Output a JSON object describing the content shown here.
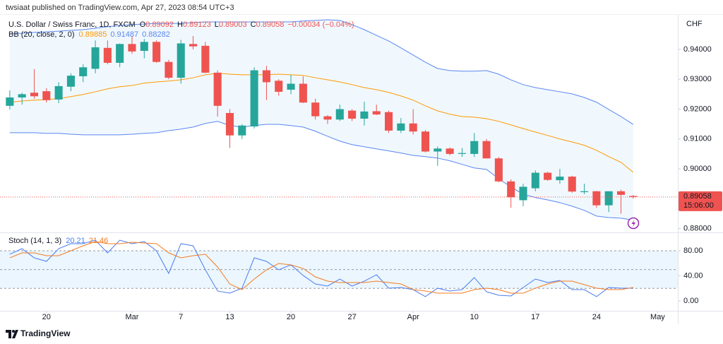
{
  "header": {
    "published": "twsiaat published on TradingView.com, Apr 27, 2023 08:54 UTC+3"
  },
  "footer": {
    "brand": "TradingView"
  },
  "chart_data": [
    {
      "type": "candlestick",
      "name": "U.S. Dollar / Swiss Franc, 1D, FXCM",
      "ohlc_labels": [
        "O",
        "H",
        "L",
        "C"
      ],
      "change_label": "−0.00034 (−0.04%)",
      "axis_label": "CHF",
      "last_price_timer": "15:06:00",
      "up_color": "#26a69a",
      "down_color": "#ef5350",
      "open": [
        0.9211,
        0.9239,
        0.9255,
        0.926,
        0.9232,
        0.9275,
        0.931,
        0.9335,
        0.9405,
        0.9355,
        0.9418,
        0.9395,
        0.9425,
        0.9358,
        0.9305,
        0.9418,
        0.9412,
        0.9322,
        0.9187,
        0.9112,
        0.9142,
        0.933,
        0.9295,
        0.9265,
        0.9285,
        0.9222,
        0.9176,
        0.9165,
        0.9195,
        0.9168,
        0.9193,
        0.919,
        0.9128,
        0.9152,
        0.9125,
        0.9058,
        0.9068,
        0.905,
        0.905,
        0.9093,
        0.9035,
        0.8958,
        0.8895,
        0.8935,
        0.8987,
        0.8962,
        0.8974,
        0.8922,
        0.8925,
        0.8878,
        0.8925,
        0.89092
      ],
      "high": [
        0.9263,
        0.9255,
        0.9334,
        0.927,
        0.929,
        0.932,
        0.935,
        0.943,
        0.943,
        0.942,
        0.9445,
        0.9435,
        0.943,
        0.9365,
        0.9432,
        0.9445,
        0.9425,
        0.933,
        0.92,
        0.915,
        0.934,
        0.9345,
        0.93,
        0.9315,
        0.931,
        0.9235,
        0.918,
        0.9215,
        0.92,
        0.9225,
        0.9215,
        0.9195,
        0.917,
        0.92,
        0.913,
        0.9075,
        0.9072,
        0.907,
        0.912,
        0.91,
        0.904,
        0.8965,
        0.895,
        0.8995,
        0.899,
        0.9,
        0.8977,
        0.895,
        0.8926,
        0.8925,
        0.893,
        0.89123
      ],
      "low": [
        0.9199,
        0.9215,
        0.9235,
        0.9222,
        0.922,
        0.926,
        0.929,
        0.932,
        0.935,
        0.934,
        0.9385,
        0.937,
        0.9355,
        0.93,
        0.9285,
        0.94,
        0.932,
        0.9175,
        0.907,
        0.91,
        0.9135,
        0.923,
        0.9245,
        0.925,
        0.922,
        0.9165,
        0.915,
        0.916,
        0.916,
        0.9145,
        0.918,
        0.912,
        0.912,
        0.9115,
        0.9055,
        0.901,
        0.9045,
        0.904,
        0.904,
        0.9035,
        0.8955,
        0.887,
        0.8875,
        0.8925,
        0.896,
        0.895,
        0.892,
        0.8915,
        0.887,
        0.8855,
        0.885,
        0.89003
      ],
      "close": [
        0.9239,
        0.925,
        0.9243,
        0.923,
        0.9277,
        0.9312,
        0.934,
        0.9407,
        0.9355,
        0.9418,
        0.9393,
        0.9425,
        0.9358,
        0.9305,
        0.942,
        0.941,
        0.9322,
        0.9211,
        0.9112,
        0.9145,
        0.933,
        0.929,
        0.9258,
        0.9285,
        0.9222,
        0.9176,
        0.9165,
        0.92,
        0.9168,
        0.9192,
        0.9182,
        0.9128,
        0.9152,
        0.9125,
        0.9058,
        0.9068,
        0.905,
        0.9053,
        0.9093,
        0.9035,
        0.8958,
        0.8905,
        0.894,
        0.8987,
        0.8963,
        0.8974,
        0.8924,
        0.8925,
        0.8878,
        0.8925,
        0.8913,
        0.89058
      ],
      "indicator": {
        "name": "BB (20, close, 2, 0)",
        "basis_color": "#ff9800",
        "band_color": "#5b86f0",
        "fill_color": "#e3f2fd",
        "basis": [
          0.9223,
          0.9227,
          0.923,
          0.9232,
          0.9235,
          0.9242,
          0.9249,
          0.9258,
          0.9268,
          0.9275,
          0.9279,
          0.9287,
          0.9291,
          0.9294,
          0.9298,
          0.9305,
          0.9315,
          0.932,
          0.9317,
          0.9315,
          0.9315,
          0.9315,
          0.9317,
          0.9315,
          0.9313,
          0.9305,
          0.9298,
          0.9291,
          0.9282,
          0.9272,
          0.9265,
          0.9256,
          0.9244,
          0.923,
          0.9211,
          0.9194,
          0.9183,
          0.9175,
          0.9173,
          0.9168,
          0.9159,
          0.9147,
          0.9135,
          0.9123,
          0.9112,
          0.91,
          0.909,
          0.9079,
          0.9062,
          0.9041,
          0.9022,
          0.89885
        ],
        "upper": [
          0.9452,
          0.9454,
          0.9457,
          0.9459,
          0.9461,
          0.9464,
          0.9466,
          0.9471,
          0.9476,
          0.948,
          0.9483,
          0.9485,
          0.9487,
          0.9487,
          0.9487,
          0.949,
          0.9492,
          0.9492,
          0.9492,
          0.9492,
          0.9492,
          0.9492,
          0.9492,
          0.9492,
          0.9495,
          0.9497,
          0.9499,
          0.9497,
          0.9483,
          0.9466,
          0.9447,
          0.9428,
          0.9405,
          0.9381,
          0.9357,
          0.9336,
          0.9329,
          0.9327,
          0.9327,
          0.9329,
          0.9317,
          0.9298,
          0.9282,
          0.9272,
          0.9265,
          0.9258,
          0.9251,
          0.9239,
          0.9223,
          0.9199,
          0.9175,
          0.91487
        ],
        "lower": [
          0.9121,
          0.9121,
          0.9121,
          0.9119,
          0.9119,
          0.9116,
          0.9114,
          0.9114,
          0.9114,
          0.9114,
          0.9116,
          0.9119,
          0.9121,
          0.9128,
          0.9133,
          0.914,
          0.9152,
          0.9159,
          0.9145,
          0.914,
          0.9145,
          0.9149,
          0.9149,
          0.9145,
          0.914,
          0.9126,
          0.9109,
          0.9093,
          0.9081,
          0.9074,
          0.9067,
          0.906,
          0.9053,
          0.9045,
          0.9041,
          0.9036,
          0.9027,
          0.9015,
          0.9003,
          0.8998,
          0.8967,
          0.8939,
          0.8915,
          0.8904,
          0.8896,
          0.8887,
          0.8875,
          0.8861,
          0.8842,
          0.8837,
          0.8835,
          0.88282
        ]
      },
      "xlim": [
        -0.8,
        54.65
      ],
      "ylim": [
        0.8792,
        0.9518
      ],
      "yticks": [
        {
          "value": 0.88,
          "label": "0.88000"
        },
        {
          "value": 0.89,
          "label": "0.89000"
        },
        {
          "value": 0.9,
          "label": "0.90000"
        },
        {
          "value": 0.91,
          "label": "0.91000"
        },
        {
          "value": 0.92,
          "label": "0.92000"
        },
        {
          "value": 0.93,
          "label": "0.93000"
        },
        {
          "value": 0.94,
          "label": "0.94000"
        }
      ]
    },
    {
      "type": "line",
      "name": "Stoch (14, 1, 3)",
      "bands": [
        20,
        50,
        80
      ],
      "band_color": "#e3f2fd",
      "series": [
        {
          "color": "#4a7cf0",
          "values": [
            74.4,
            83.4,
            68.7,
            63.1,
            83.4,
            91.3,
            91.3,
            96.9,
            76.6,
            96.9,
            91.3,
            94.6,
            80,
            43.9,
            91.3,
            87.9,
            49.6,
            15.8,
            12.4,
            20.3,
            68.7,
            63.1,
            49.6,
            57.5,
            40.6,
            27,
            23.7,
            34.9,
            23.7,
            31.5,
            41.7,
            20.3,
            21.4,
            18,
            6.8,
            20.3,
            15.8,
            18,
            37.2,
            14.6,
            9,
            7.9,
            21.4,
            34.9,
            29.3,
            32.7,
            18,
            18,
            6.8,
            21.4,
            20.3,
            20.21
          ]
        },
        {
          "color": "#f57c20",
          "values": [
            68.7,
            76.6,
            76.6,
            72.1,
            72.1,
            80,
            87.9,
            94.6,
            91.3,
            91.3,
            93.5,
            92.4,
            91.3,
            76.6,
            68.7,
            72.1,
            74.4,
            54.1,
            27,
            18,
            34.9,
            49.6,
            59.7,
            57.5,
            51.8,
            38.3,
            31.5,
            29.3,
            29.3,
            29.3,
            31.5,
            29.3,
            27,
            18,
            15.8,
            12.4,
            12.4,
            12.4,
            18,
            20.3,
            18,
            12.4,
            12.4,
            20.3,
            27,
            31.5,
            31.5,
            25.9,
            20.3,
            18,
            18,
            21.46
          ]
        }
      ],
      "xlim": [
        -0.8,
        54.65
      ],
      "xticks": [
        {
          "value": 3,
          "label": "20"
        },
        {
          "value": 10,
          "label": "Mar"
        },
        {
          "value": 14,
          "label": "7"
        },
        {
          "value": 18,
          "label": "13"
        },
        {
          "value": 23,
          "label": "20"
        },
        {
          "value": 28,
          "label": "27"
        },
        {
          "value": 33,
          "label": "Apr"
        },
        {
          "value": 38,
          "label": "10"
        },
        {
          "value": 43,
          "label": "17"
        },
        {
          "value": 48,
          "label": "24"
        },
        {
          "value": 53,
          "label": "May"
        }
      ],
      "ylim": [
        -15.8,
        104.8
      ],
      "yticks": [
        {
          "value": 0,
          "label": "0.00"
        },
        {
          "value": 40,
          "label": "40.00"
        },
        {
          "value": 80,
          "label": "80.00"
        }
      ]
    }
  ]
}
